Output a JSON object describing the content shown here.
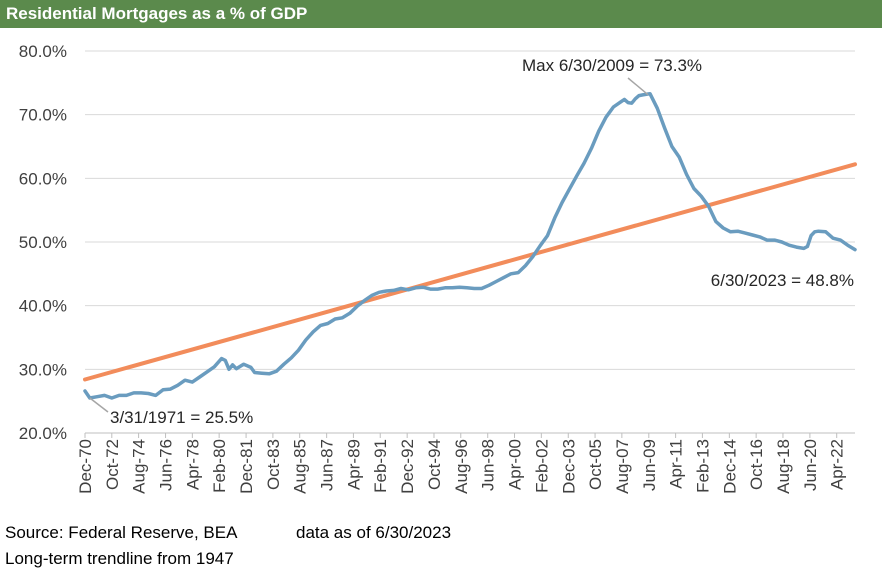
{
  "title": "Residential Mortgages as a % of GDP",
  "footer": {
    "source": "Source: Federal Reserve, BEA",
    "as_of": "data as of 6/30/2023",
    "note": "Long-term trendline from 1947"
  },
  "colors": {
    "title_bg": "#5b8a4c",
    "series": "#6a9cbf",
    "trend": "#f28c5b",
    "grid": "#d9d9d9"
  },
  "chart_data": {
    "type": "line",
    "title": "Residential Mortgages as a % of GDP",
    "xlabel": "",
    "ylabel": "",
    "ylim": [
      20,
      80
    ],
    "xlim": [
      1970.92,
      2023.5
    ],
    "yticks": [
      "20.0%",
      "30.0%",
      "40.0%",
      "50.0%",
      "60.0%",
      "70.0%",
      "80.0%"
    ],
    "xticks": [
      {
        "label": "Dec-70",
        "x": 1970.92
      },
      {
        "label": "Oct-72",
        "x": 1972.75
      },
      {
        "label": "Aug-74",
        "x": 1974.58
      },
      {
        "label": "Jun-76",
        "x": 1976.42
      },
      {
        "label": "Apr-78",
        "x": 1978.25
      },
      {
        "label": "Feb-80",
        "x": 1980.08
      },
      {
        "label": "Dec-81",
        "x": 1981.92
      },
      {
        "label": "Oct-83",
        "x": 1983.75
      },
      {
        "label": "Aug-85",
        "x": 1985.58
      },
      {
        "label": "Jun-87",
        "x": 1987.42
      },
      {
        "label": "Apr-89",
        "x": 1989.25
      },
      {
        "label": "Feb-91",
        "x": 1991.08
      },
      {
        "label": "Dec-92",
        "x": 1992.92
      },
      {
        "label": "Oct-94",
        "x": 1994.75
      },
      {
        "label": "Aug-96",
        "x": 1996.58
      },
      {
        "label": "Jun-98",
        "x": 1998.42
      },
      {
        "label": "Apr-00",
        "x": 2000.25
      },
      {
        "label": "Feb-02",
        "x": 2002.08
      },
      {
        "label": "Dec-03",
        "x": 2003.92
      },
      {
        "label": "Oct-05",
        "x": 2005.75
      },
      {
        "label": "Aug-07",
        "x": 2007.58
      },
      {
        "label": "Jun-09",
        "x": 2009.42
      },
      {
        "label": "Apr-11",
        "x": 2011.25
      },
      {
        "label": "Feb-13",
        "x": 2013.08
      },
      {
        "label": "Dec-14",
        "x": 2014.92
      },
      {
        "label": "Oct-16",
        "x": 2016.75
      },
      {
        "label": "Aug-18",
        "x": 2018.58
      },
      {
        "label": "Jun-20",
        "x": 2020.42
      },
      {
        "label": "Apr-22",
        "x": 2022.25
      }
    ],
    "series": [
      {
        "points": [
          [
            1970.92,
            26.6
          ],
          [
            1971.25,
            25.5
          ],
          [
            1971.75,
            25.7
          ],
          [
            1972.25,
            25.9
          ],
          [
            1972.75,
            25.5
          ],
          [
            1973.25,
            25.9
          ],
          [
            1973.75,
            25.9
          ],
          [
            1974.25,
            26.3
          ],
          [
            1974.75,
            26.3
          ],
          [
            1975.25,
            26.2
          ],
          [
            1975.75,
            25.9
          ],
          [
            1976.25,
            26.8
          ],
          [
            1976.75,
            26.9
          ],
          [
            1977.25,
            27.5
          ],
          [
            1977.75,
            28.3
          ],
          [
            1978.25,
            28.0
          ],
          [
            1978.75,
            28.8
          ],
          [
            1979.25,
            29.6
          ],
          [
            1979.75,
            30.4
          ],
          [
            1980.25,
            31.7
          ],
          [
            1980.5,
            31.4
          ],
          [
            1980.75,
            30.0
          ],
          [
            1981.0,
            30.7
          ],
          [
            1981.25,
            30.1
          ],
          [
            1981.75,
            30.8
          ],
          [
            1982.25,
            30.3
          ],
          [
            1982.5,
            29.5
          ],
          [
            1983.0,
            29.4
          ],
          [
            1983.5,
            29.3
          ],
          [
            1984.0,
            29.7
          ],
          [
            1984.5,
            30.8
          ],
          [
            1985.0,
            31.8
          ],
          [
            1985.5,
            33.0
          ],
          [
            1986.0,
            34.6
          ],
          [
            1986.5,
            35.9
          ],
          [
            1987.0,
            36.9
          ],
          [
            1987.5,
            37.2
          ],
          [
            1988.0,
            37.9
          ],
          [
            1988.5,
            38.1
          ],
          [
            1989.0,
            38.8
          ],
          [
            1989.5,
            39.9
          ],
          [
            1990.0,
            40.8
          ],
          [
            1990.5,
            41.6
          ],
          [
            1991.0,
            42.1
          ],
          [
            1991.5,
            42.3
          ],
          [
            1992.0,
            42.4
          ],
          [
            1992.5,
            42.7
          ],
          [
            1993.0,
            42.5
          ],
          [
            1993.5,
            42.8
          ],
          [
            1994.0,
            42.9
          ],
          [
            1994.5,
            42.6
          ],
          [
            1995.0,
            42.6
          ],
          [
            1995.5,
            42.8
          ],
          [
            1996.0,
            42.8
          ],
          [
            1996.5,
            42.9
          ],
          [
            1997.0,
            42.8
          ],
          [
            1997.5,
            42.7
          ],
          [
            1998.0,
            42.7
          ],
          [
            1998.5,
            43.2
          ],
          [
            1999.0,
            43.8
          ],
          [
            1999.5,
            44.4
          ],
          [
            2000.0,
            45.0
          ],
          [
            2000.5,
            45.2
          ],
          [
            2001.0,
            46.3
          ],
          [
            2001.5,
            47.7
          ],
          [
            2002.0,
            49.4
          ],
          [
            2002.5,
            51.0
          ],
          [
            2003.0,
            53.8
          ],
          [
            2003.5,
            56.2
          ],
          [
            2004.0,
            58.3
          ],
          [
            2004.5,
            60.4
          ],
          [
            2005.0,
            62.4
          ],
          [
            2005.5,
            64.7
          ],
          [
            2006.0,
            67.4
          ],
          [
            2006.5,
            69.6
          ],
          [
            2007.0,
            71.2
          ],
          [
            2007.5,
            72.0
          ],
          [
            2007.75,
            72.4
          ],
          [
            2008.0,
            71.9
          ],
          [
            2008.25,
            71.8
          ],
          [
            2008.5,
            72.5
          ],
          [
            2008.75,
            73.0
          ],
          [
            2009.0,
            73.1
          ],
          [
            2009.5,
            73.3
          ],
          [
            2010.0,
            71.0
          ],
          [
            2010.5,
            67.9
          ],
          [
            2011.0,
            65.0
          ],
          [
            2011.5,
            63.3
          ],
          [
            2012.0,
            60.6
          ],
          [
            2012.5,
            58.4
          ],
          [
            2013.0,
            57.2
          ],
          [
            2013.5,
            55.6
          ],
          [
            2014.0,
            53.2
          ],
          [
            2014.5,
            52.2
          ],
          [
            2015.0,
            51.6
          ],
          [
            2015.5,
            51.7
          ],
          [
            2016.0,
            51.4
          ],
          [
            2016.5,
            51.1
          ],
          [
            2017.0,
            50.8
          ],
          [
            2017.5,
            50.3
          ],
          [
            2018.0,
            50.3
          ],
          [
            2018.5,
            50.0
          ],
          [
            2019.0,
            49.5
          ],
          [
            2019.5,
            49.2
          ],
          [
            2020.0,
            49.0
          ],
          [
            2020.25,
            49.3
          ],
          [
            2020.5,
            51.0
          ],
          [
            2020.75,
            51.6
          ],
          [
            2021.0,
            51.7
          ],
          [
            2021.5,
            51.6
          ],
          [
            2022.0,
            50.6
          ],
          [
            2022.5,
            50.3
          ],
          [
            2023.0,
            49.5
          ],
          [
            2023.5,
            48.8
          ]
        ]
      },
      {
        "points": [
          [
            1970.92,
            28.4
          ],
          [
            2023.5,
            62.2
          ]
        ]
      }
    ],
    "annotations": [
      {
        "text": "Max 6/30/2009 = 73.3%",
        "x": 2009.5,
        "y": 73.3
      },
      {
        "text": "3/31/1971 = 25.5%",
        "x": 1971.25,
        "y": 25.5
      },
      {
        "text": "6/30/2023 = 48.8%",
        "x": 2023.5,
        "y": 48.8
      }
    ],
    "grid": true,
    "legend": "none"
  }
}
